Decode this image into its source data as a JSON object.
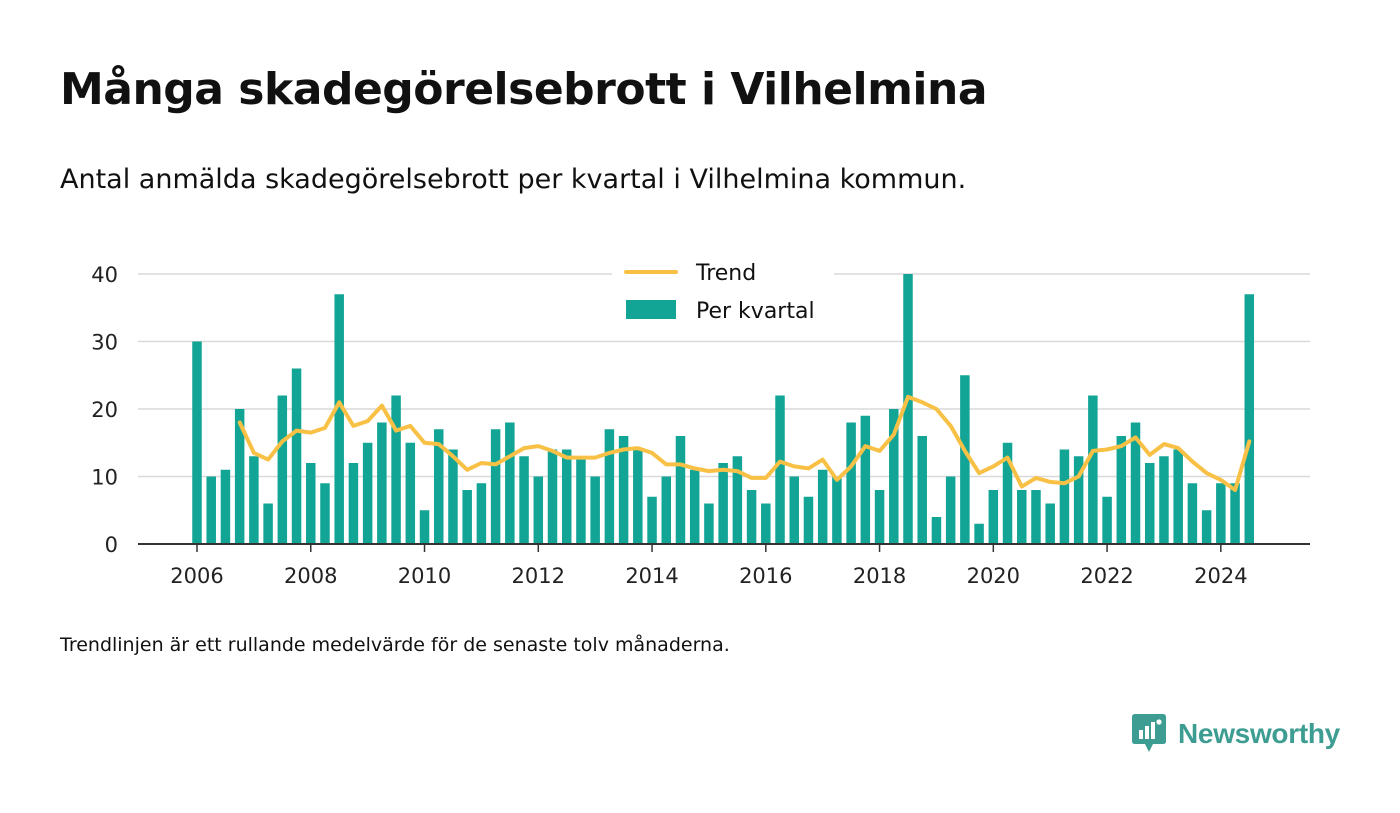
{
  "title": "Många skadegörelsebrott i Vilhelmina",
  "subtitle": "Antal anmälda skadegörelsebrott per kvartal i Vilhelmina kommun.",
  "note": "Trendlinjen är ett rullande medelvärde för de senaste tolv månaderna.",
  "brand": {
    "name": "Newsworthy",
    "icon": "newsworthy-logo-icon",
    "color": "#3e9d92"
  },
  "colors": {
    "bar": "#12a596",
    "trend": "#f8c146",
    "grid": "#d9d9d9",
    "axis": "#333333"
  },
  "chart_data": {
    "type": "bar",
    "x_start": "2006 Q1",
    "x_tick_labels": [
      "2006",
      "2008",
      "2010",
      "2012",
      "2014",
      "2016",
      "2018",
      "2020",
      "2022",
      "2024"
    ],
    "ylim": [
      0,
      40
    ],
    "yticks": [
      0,
      10,
      20,
      30,
      40
    ],
    "grid": true,
    "legend_placement": "top-center",
    "series": [
      {
        "name": "Per kvartal",
        "type": "bar",
        "values": [
          30,
          10,
          11,
          20,
          13,
          6,
          22,
          26,
          12,
          9,
          37,
          12,
          15,
          18,
          22,
          15,
          5,
          17,
          14,
          8,
          9,
          17,
          18,
          13,
          10,
          14,
          14,
          13,
          10,
          17,
          16,
          14,
          7,
          10,
          16,
          11,
          6,
          12,
          13,
          8,
          6,
          22,
          10,
          7,
          11,
          10,
          18,
          19,
          8,
          20,
          40,
          16,
          4,
          10,
          25,
          3,
          8,
          15,
          8,
          8,
          6,
          14,
          13,
          22,
          7,
          16,
          18,
          12,
          13,
          14,
          9,
          5,
          9,
          9,
          37
        ]
      },
      {
        "name": "Trend",
        "type": "line",
        "values": [
          null,
          null,
          null,
          18,
          13.5,
          12.5,
          15.2,
          16.8,
          16.5,
          17.2,
          21,
          17.5,
          18.2,
          20.5,
          16.8,
          17.5,
          15,
          14.8,
          13,
          11,
          12,
          11.8,
          13,
          14.2,
          14.5,
          13.8,
          12.8,
          12.8,
          12.8,
          13.5,
          14,
          14.2,
          13.5,
          11.8,
          11.8,
          11.2,
          10.8,
          11,
          10.8,
          9.8,
          9.8,
          12.2,
          11.5,
          11.2,
          12.5,
          9.5,
          11.5,
          14.5,
          13.8,
          16.2,
          21.8,
          21,
          20,
          17.5,
          13.8,
          10.5,
          11.5,
          12.8,
          8.5,
          9.8,
          9.2,
          9,
          10,
          13.8,
          14,
          14.5,
          15.8,
          13.2,
          14.8,
          14.2,
          12.2,
          10.5,
          9.5,
          8,
          15.2
        ]
      }
    ]
  }
}
